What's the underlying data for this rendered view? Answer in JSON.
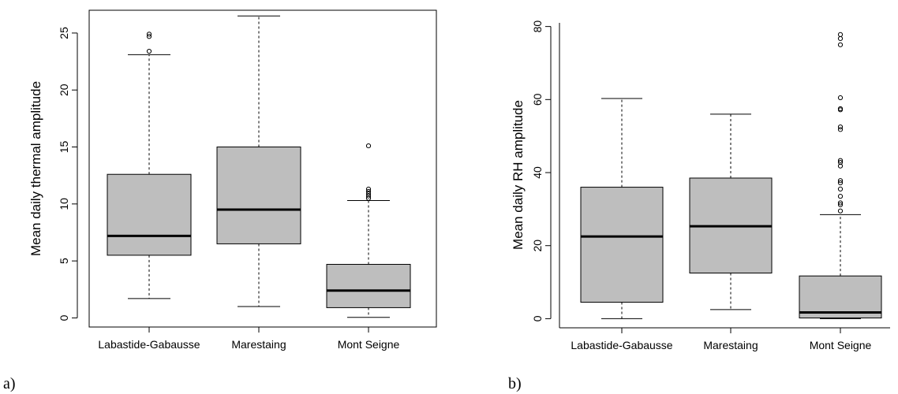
{
  "chart_data": [
    {
      "type": "box",
      "panel_label": "a)",
      "title": "",
      "xlabel": "",
      "ylabel": "Mean daily thermal amplitude",
      "ylim": [
        -0.8,
        27
      ],
      "yticks": [
        0,
        5,
        10,
        15,
        20,
        25
      ],
      "frame": "full",
      "box_fill": "#bebebe",
      "categories": [
        "Labastide-Gabausse",
        "Marestaing",
        "Mont Seigne"
      ],
      "boxes": [
        {
          "whisker_low": 1.7,
          "q1": 5.5,
          "median": 7.2,
          "q3": 12.6,
          "whisker_high": 23.1,
          "outliers": [
            23.4,
            24.7,
            24.9
          ]
        },
        {
          "whisker_low": 1.0,
          "q1": 6.5,
          "median": 9.5,
          "q3": 15.0,
          "whisker_high": 26.5,
          "outliers": []
        },
        {
          "whisker_low": 0.05,
          "q1": 0.9,
          "median": 2.4,
          "q3": 4.7,
          "whisker_high": 10.3,
          "outliers": [
            10.5,
            10.7,
            10.9,
            11.1,
            11.3,
            15.1
          ]
        }
      ]
    },
    {
      "type": "box",
      "panel_label": "b)",
      "title": "",
      "xlabel": "",
      "ylabel": "Mean daily RH amplitude",
      "ylim": [
        -2.5,
        81
      ],
      "yticks": [
        0,
        20,
        40,
        60,
        80
      ],
      "frame": "axes",
      "box_fill": "#bebebe",
      "categories": [
        "Labastide-Gabausse",
        "Marestaing",
        "Mont Seigne"
      ],
      "boxes": [
        {
          "whisker_low": 0.0,
          "q1": 4.5,
          "median": 22.5,
          "q3": 36.0,
          "whisker_high": 60.3,
          "outliers": []
        },
        {
          "whisker_low": 2.5,
          "q1": 12.5,
          "median": 25.3,
          "q3": 38.5,
          "whisker_high": 56.0,
          "outliers": []
        },
        {
          "whisker_low": 0.0,
          "q1": 0.2,
          "median": 1.7,
          "q3": 11.7,
          "whisker_high": 28.5,
          "outliers": [
            29.5,
            31.2,
            31.7,
            33.5,
            35.5,
            37.2,
            37.8,
            41.8,
            42.8,
            43.3,
            51.8,
            52.5,
            57.2,
            57.5,
            60.5,
            75.0,
            76.7,
            77.8
          ]
        }
      ]
    }
  ]
}
